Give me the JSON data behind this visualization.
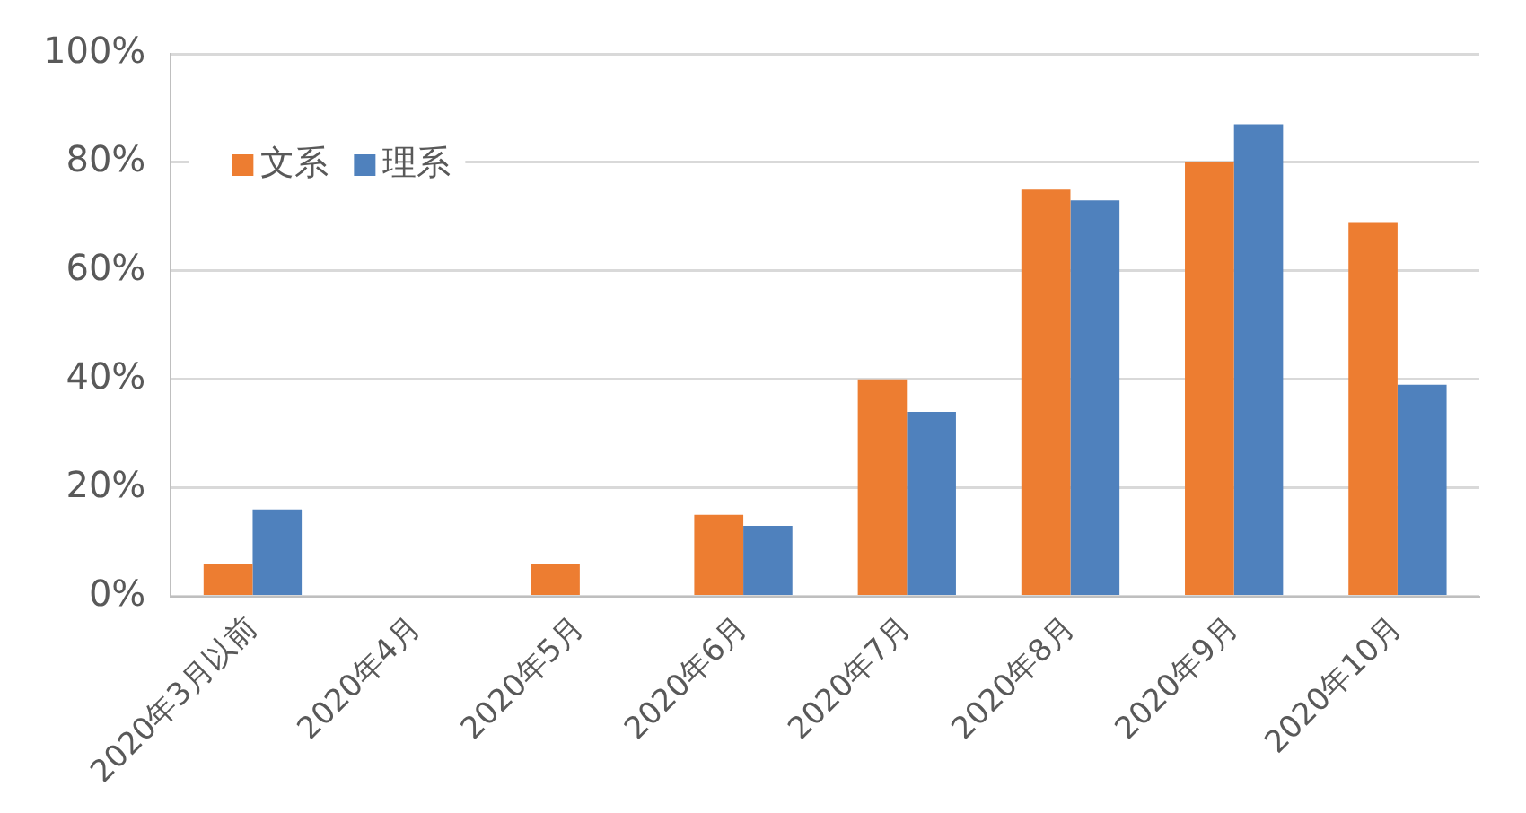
{
  "chart_data": {
    "type": "bar",
    "categories": [
      "2020年3月以前",
      "2020年4月",
      "2020年5月",
      "2020年6月",
      "2020年7月",
      "2020年8月",
      "2020年9月",
      "2020年10月"
    ],
    "series": [
      {
        "name": "文系",
        "color": "#ed7d31",
        "values": [
          6,
          0,
          6,
          15,
          40,
          75,
          80,
          69
        ]
      },
      {
        "name": "理系",
        "color": "#4f81bd",
        "values": [
          16,
          0,
          0,
          13,
          34,
          73,
          87,
          39
        ]
      }
    ],
    "ylim": [
      0,
      100
    ],
    "yticks": [
      {
        "value": 0,
        "label": "0%"
      },
      {
        "value": 20,
        "label": "20%"
      },
      {
        "value": 40,
        "label": "40%"
      },
      {
        "value": 60,
        "label": "60%"
      },
      {
        "value": 80,
        "label": "80%"
      },
      {
        "value": 100,
        "label": "100%"
      }
    ],
    "grid": "y",
    "legend": "top left"
  }
}
